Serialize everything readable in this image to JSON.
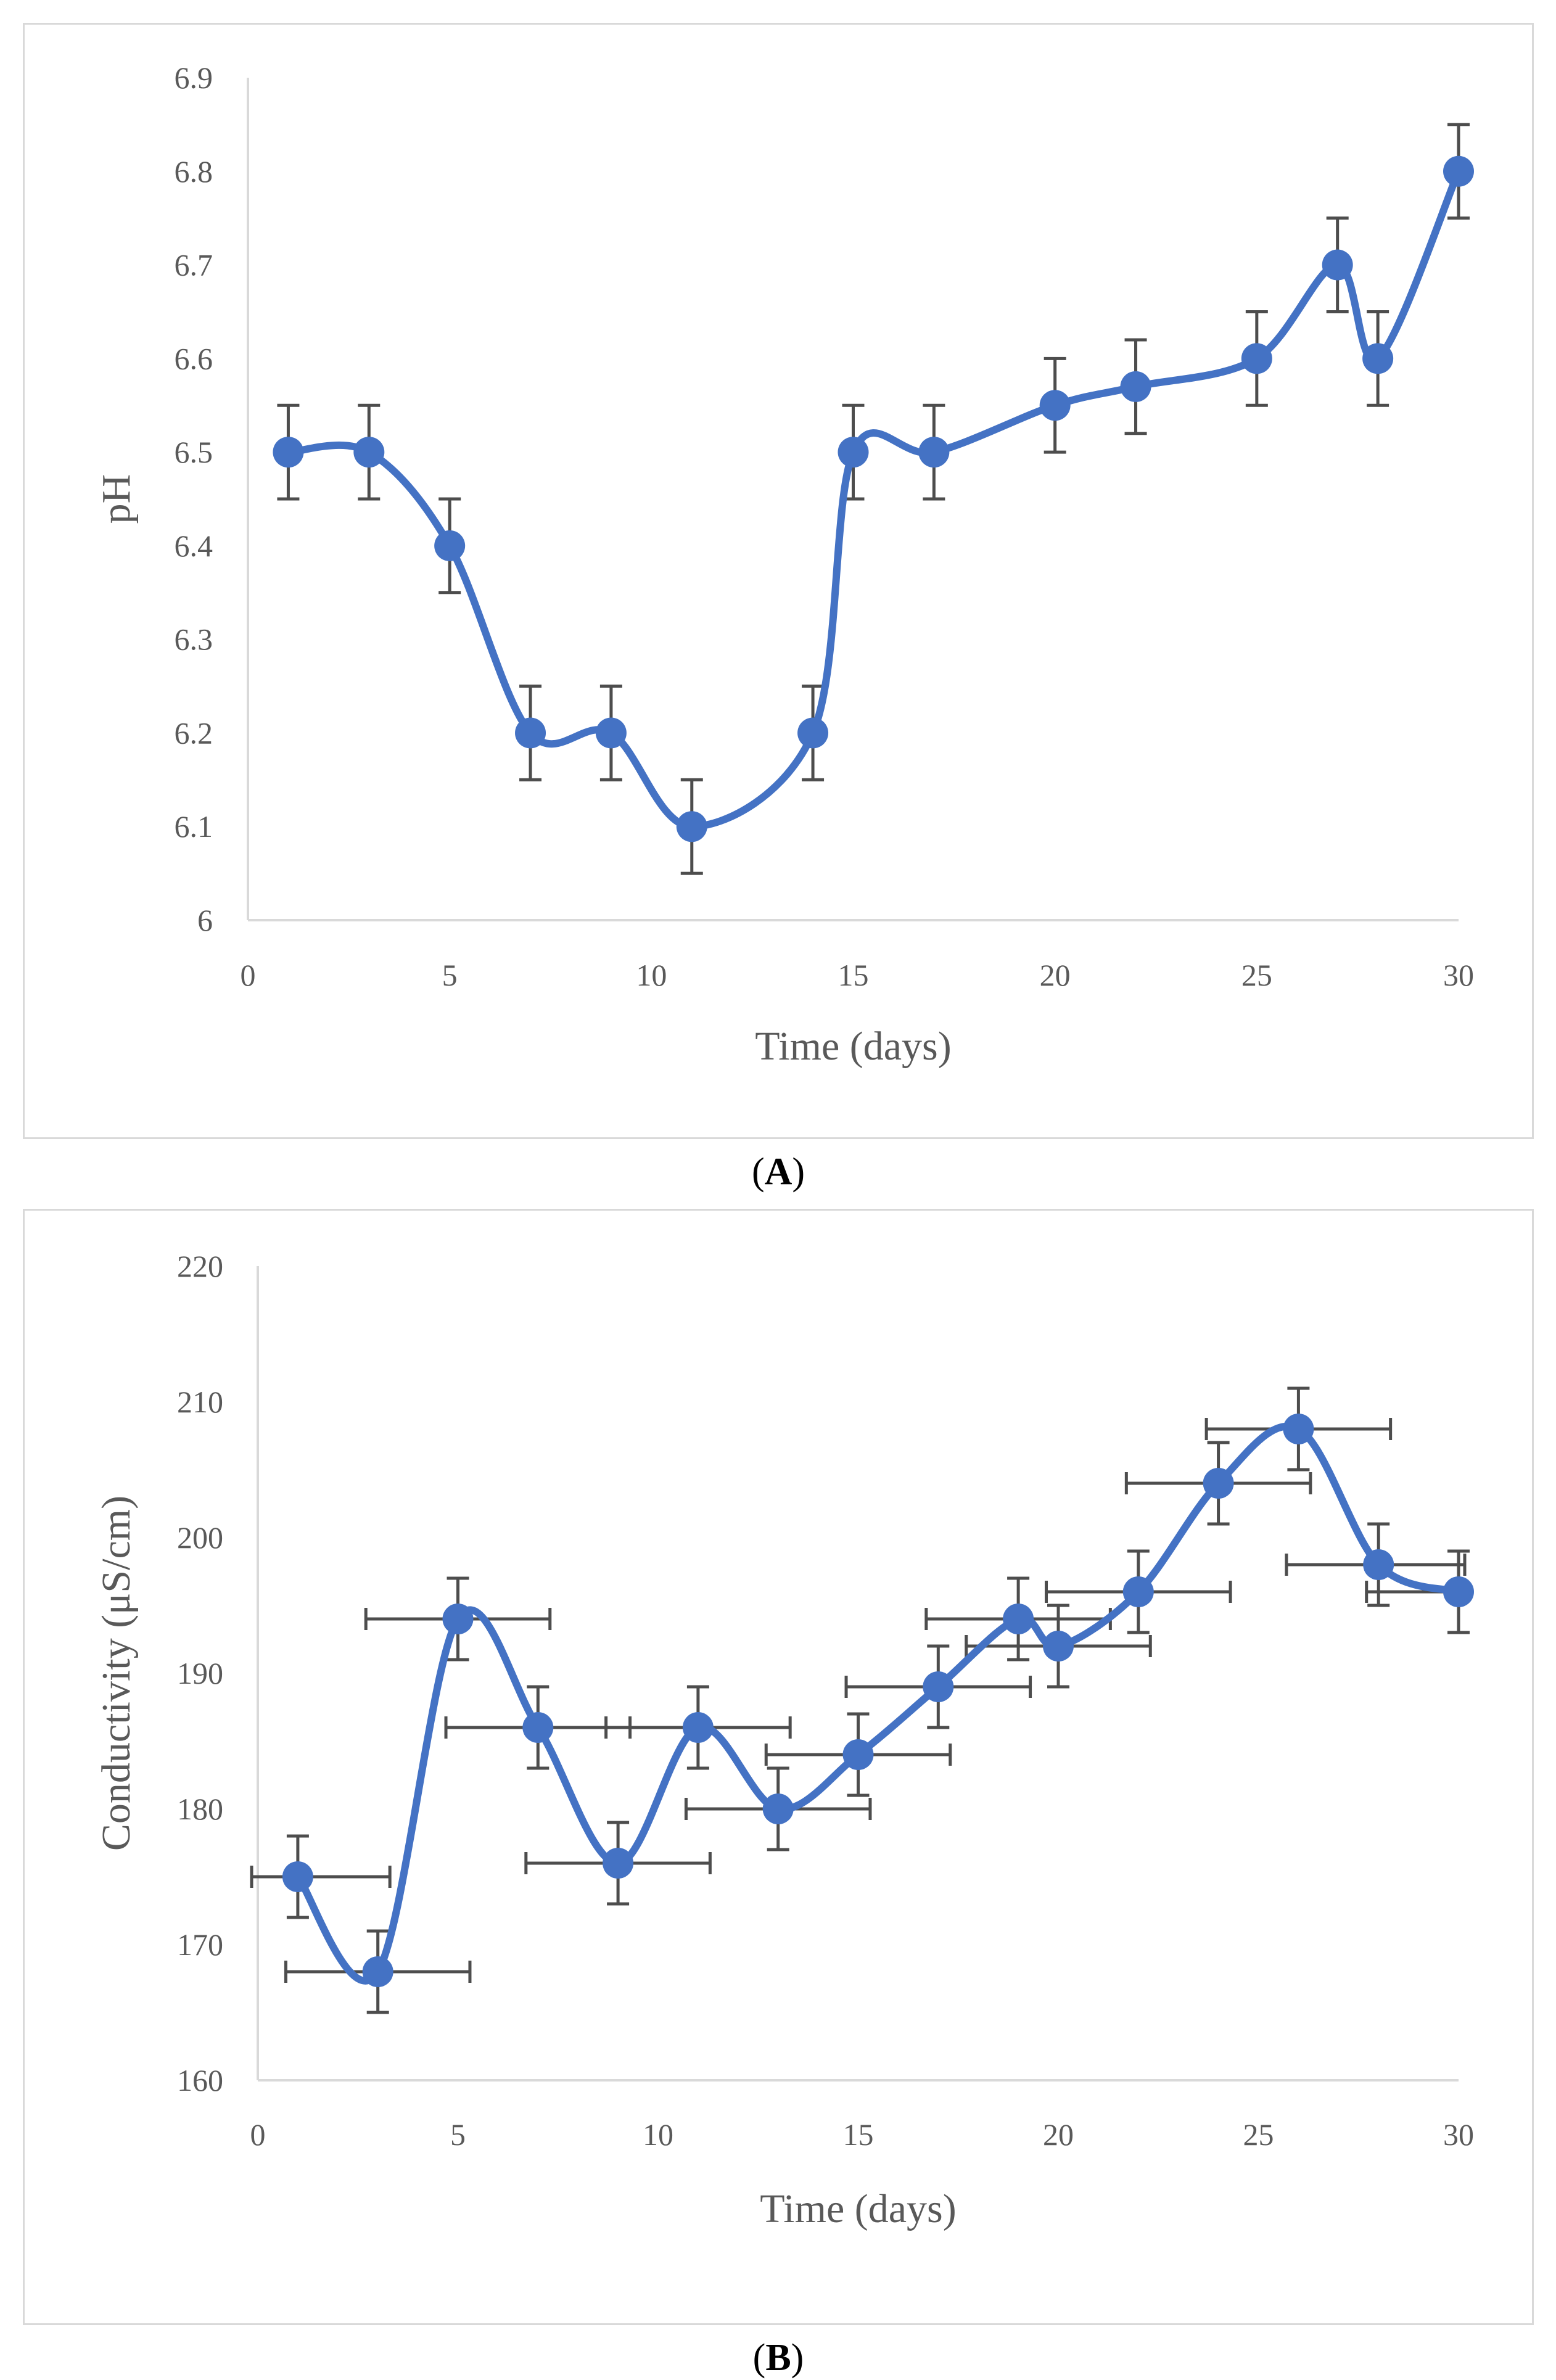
{
  "chart_data": [
    {
      "id": "A",
      "panel_label": "A",
      "type": "line",
      "xlabel": "Time (days)",
      "ylabel": "pH",
      "xlim": [
        0,
        30
      ],
      "ylim": [
        6,
        6.9
      ],
      "xticks": [
        0,
        5,
        10,
        15,
        20,
        25,
        30
      ],
      "yticks": [
        "6",
        "6.1",
        "6.2",
        "6.3",
        "6.4",
        "6.5",
        "6.6",
        "6.7",
        "6.8",
        "6.9"
      ],
      "line_color": "#4472c4",
      "error_color": "#4d4d4d",
      "grid": false,
      "series": [
        {
          "name": "pH",
          "x": [
            1,
            3,
            5,
            7,
            9,
            11,
            14,
            15,
            17,
            20,
            22,
            25,
            27,
            28,
            30
          ],
          "y": [
            6.5,
            6.5,
            6.4,
            6.2,
            6.2,
            6.1,
            6.2,
            6.5,
            6.5,
            6.55,
            6.57,
            6.6,
            6.7,
            6.6,
            6.8
          ],
          "y_error": 0.05,
          "x_error": 0
        }
      ]
    },
    {
      "id": "B",
      "panel_label": "B",
      "type": "line",
      "xlabel": "Time (days)",
      "ylabel": "Conductivity (μS/cm)",
      "xlim": [
        0,
        30
      ],
      "ylim": [
        160,
        220
      ],
      "xticks": [
        0,
        5,
        10,
        15,
        20,
        25,
        30
      ],
      "yticks": [
        "160",
        "170",
        "180",
        "190",
        "200",
        "210",
        "220"
      ],
      "line_color": "#4472c4",
      "error_color": "#4d4d4d",
      "grid": false,
      "series": [
        {
          "name": "Conductivity",
          "x": [
            1,
            3,
            5,
            7,
            9,
            11,
            13,
            15,
            17,
            19,
            20,
            22,
            24,
            26,
            28,
            30
          ],
          "y": [
            175,
            168,
            194,
            186,
            176,
            186,
            180,
            184,
            189,
            194,
            192,
            196,
            204,
            208,
            198,
            196
          ],
          "y_error": 3,
          "x_error": 2.3
        }
      ]
    }
  ]
}
